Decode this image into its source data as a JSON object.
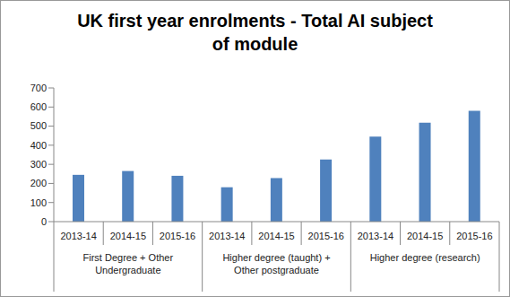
{
  "chart_data": {
    "type": "bar",
    "title": "UK first year enrolments - Total AI subject of module",
    "categories": [
      "2013-14",
      "2014-15",
      "2015-16",
      "2013-14",
      "2014-15",
      "2015-16",
      "2013-14",
      "2014-15",
      "2015-16"
    ],
    "category_groups": [
      "First Degree + Other Undergraduate",
      "Higher degree (taught) + Other postgraduate",
      "Higher degree (research)"
    ],
    "values": [
      245,
      265,
      240,
      180,
      228,
      325,
      445,
      518,
      580
    ],
    "color": "#4f81bd",
    "ylim": [
      0,
      700
    ],
    "yticks": [
      0,
      100,
      200,
      300,
      400,
      500,
      600,
      700
    ],
    "grid": false
  }
}
